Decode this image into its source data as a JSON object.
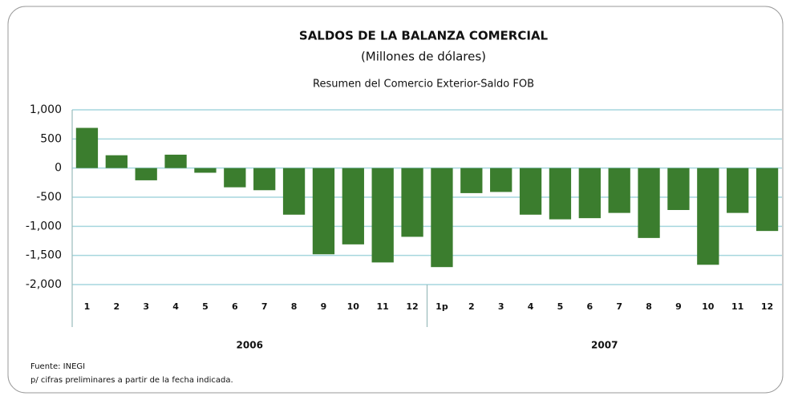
{
  "chart_data": {
    "type": "bar",
    "title": "SALDOS DE LA BALANZA COMERCIAL",
    "subtitle": "(Millones de dólares)",
    "description": "Resumen del Comercio Exterior-Saldo FOB",
    "categories": [
      "1",
      "2",
      "3",
      "4",
      "5",
      "6",
      "7",
      "8",
      "9",
      "10",
      "11",
      "12",
      "1p",
      "2",
      "3",
      "4",
      "5",
      "6",
      "7",
      "8",
      "9",
      "10",
      "11",
      "12"
    ],
    "years": [
      "2006",
      "2007"
    ],
    "values": [
      690,
      220,
      -210,
      230,
      -80,
      -330,
      -380,
      -800,
      -1480,
      -1310,
      -1620,
      -1180,
      -1700,
      -430,
      -410,
      -800,
      -880,
      -860,
      -770,
      -1200,
      -720,
      -1660,
      -770,
      -1080
    ],
    "color": "#3b7d2e",
    "ylim": [
      -2000,
      1000
    ],
    "yticks": [
      {
        "value": -2000,
        "label": "-2,000"
      },
      {
        "value": -1500,
        "label": "-1,500"
      },
      {
        "value": -1000,
        "label": "-1,000"
      },
      -500,
      0,
      500,
      {
        "value": 1000,
        "label": "1,000"
      }
    ],
    "grid": true,
    "source": "Fuente: INEGI",
    "note": "p/ cifras preliminares a partir de la fecha indicada."
  }
}
